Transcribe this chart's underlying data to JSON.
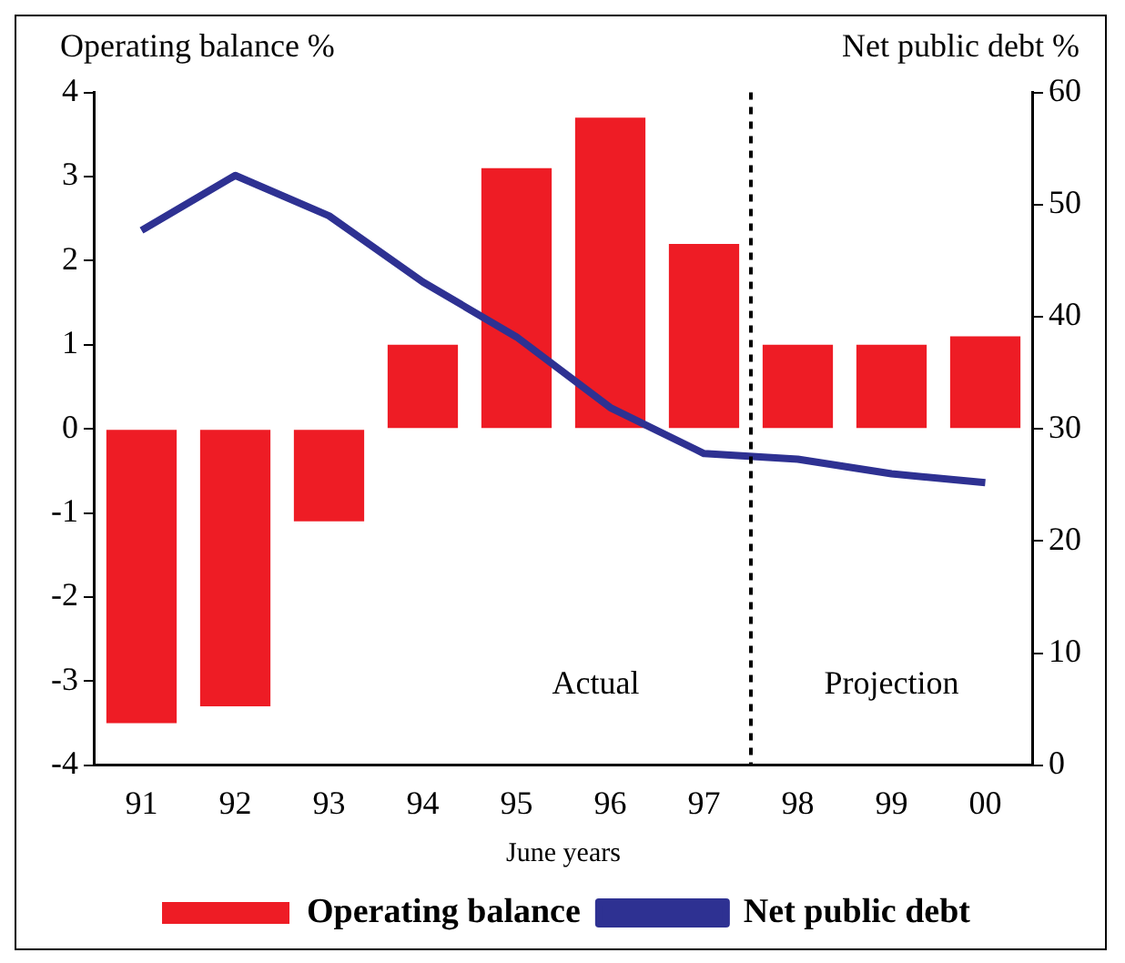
{
  "chart_data": {
    "type": "bar",
    "ylabel": "Operating balance %",
    "y2label": "Net public debt %",
    "xlabel": "June years",
    "categories": [
      "91",
      "92",
      "93",
      "94",
      "95",
      "96",
      "97",
      "98",
      "99",
      "00"
    ],
    "series": [
      {
        "name": "Operating balance",
        "color": "#ee1c25",
        "values": [
          -3.5,
          -3.3,
          -1.1,
          1.0,
          3.1,
          3.7,
          2.2,
          1.0,
          1.0,
          1.1
        ]
      },
      {
        "name": "Net public debt",
        "type": "line",
        "axis": "y2",
        "color": "#2e3192",
        "marker": "none",
        "values": [
          47.7,
          52.6,
          49.0,
          43.1,
          38.2,
          31.9,
          27.8,
          27.3,
          26.0,
          25.2
        ]
      }
    ],
    "ylim": [
      -4,
      4
    ],
    "yticks": [
      -4,
      -3,
      -2,
      -1,
      0,
      1,
      2,
      3,
      4
    ],
    "y2lim": [
      0,
      60
    ],
    "y2ticks": [
      0,
      10,
      20,
      30,
      40,
      50,
      60
    ],
    "annotations": [
      "Actual",
      "Projection"
    ],
    "grid": false,
    "legend": "bottom"
  }
}
